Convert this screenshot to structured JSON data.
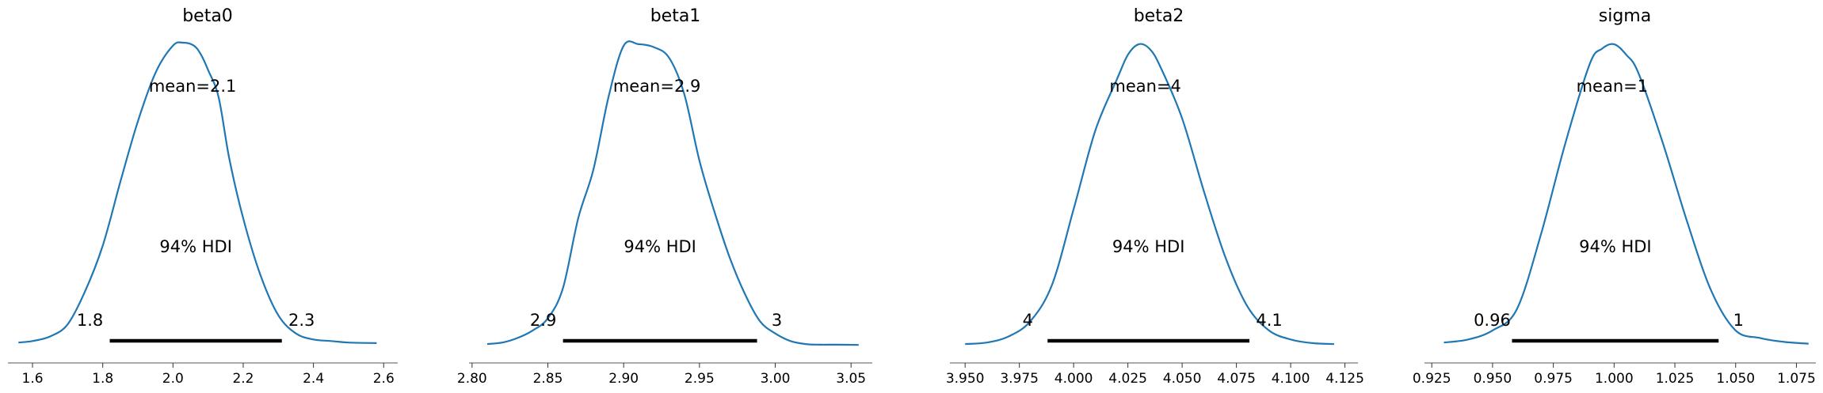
{
  "chart_data": [
    {
      "type": "line",
      "title": "beta0",
      "mean_label": "mean=2.1",
      "hdi_label": "94% HDI",
      "hdi": [
        1.82,
        2.31
      ],
      "hdi_low_label": "1.8",
      "hdi_high_label": "2.3",
      "xlim": [
        1.53,
        2.64
      ],
      "xticks": [
        1.6,
        1.8,
        2.0,
        2.2,
        2.4,
        2.6
      ],
      "xtick_labels": [
        "1.6",
        "1.8",
        "2.0",
        "2.2",
        "2.4",
        "2.6"
      ],
      "x": [
        1.56,
        1.6,
        1.65,
        1.7,
        1.75,
        1.8,
        1.85,
        1.9,
        1.95,
        2.0,
        2.03,
        2.06,
        2.08,
        2.1,
        2.13,
        2.16,
        2.2,
        2.25,
        2.3,
        2.35,
        2.4,
        2.45,
        2.5,
        2.58
      ],
      "y": [
        0.01,
        0.015,
        0.03,
        0.07,
        0.18,
        0.33,
        0.54,
        0.74,
        0.9,
        0.99,
        1.0,
        0.99,
        0.96,
        0.91,
        0.82,
        0.62,
        0.42,
        0.23,
        0.1,
        0.04,
        0.02,
        0.015,
        0.01,
        0.008
      ]
    },
    {
      "type": "line",
      "title": "beta1",
      "mean_label": "mean=2.9",
      "hdi_label": "94% HDI",
      "hdi": [
        2.86,
        2.988
      ],
      "hdi_low_label": "2.9",
      "hdi_high_label": "3",
      "xlim": [
        2.798,
        3.064
      ],
      "xticks": [
        2.8,
        2.85,
        2.9,
        2.95,
        3.0,
        3.05
      ],
      "xtick_labels": [
        "2.80",
        "2.85",
        "2.90",
        "2.95",
        "3.00",
        "3.05"
      ],
      "x": [
        2.81,
        2.82,
        2.83,
        2.84,
        2.85,
        2.86,
        2.87,
        2.88,
        2.89,
        2.9,
        2.91,
        2.92,
        2.93,
        2.94,
        2.95,
        2.96,
        2.97,
        2.98,
        2.99,
        3.0,
        3.01,
        3.02,
        3.03,
        3.04,
        3.055
      ],
      "y": [
        0.005,
        0.01,
        0.025,
        0.05,
        0.09,
        0.19,
        0.42,
        0.58,
        0.82,
        0.99,
        0.995,
        0.985,
        0.95,
        0.83,
        0.61,
        0.44,
        0.29,
        0.17,
        0.08,
        0.04,
        0.015,
        0.005,
        0.003,
        0.003,
        0.002
      ]
    },
    {
      "type": "line",
      "title": "beta2",
      "mean_label": "mean=4",
      "hdi_label": "94% HDI",
      "hdi": [
        3.988,
        4.081
      ],
      "hdi_low_label": "4",
      "hdi_high_label": "4.1",
      "xlim": [
        3.943,
        4.131
      ],
      "xticks": [
        3.95,
        3.975,
        4.0,
        4.025,
        4.05,
        4.075,
        4.1,
        4.125
      ],
      "xtick_labels": [
        "3.950",
        "3.975",
        "4.000",
        "4.025",
        "4.050",
        "4.075",
        "4.100",
        "4.125"
      ],
      "x": [
        3.95,
        3.96,
        3.97,
        3.98,
        3.99,
        4.0,
        4.01,
        4.02,
        4.025,
        4.03,
        4.035,
        4.04,
        4.05,
        4.06,
        4.07,
        4.08,
        4.09,
        4.1,
        4.11,
        4.12
      ],
      "y": [
        0.005,
        0.01,
        0.03,
        0.08,
        0.2,
        0.45,
        0.71,
        0.88,
        0.96,
        0.995,
        0.98,
        0.92,
        0.75,
        0.51,
        0.29,
        0.13,
        0.05,
        0.02,
        0.008,
        0.005
      ]
    },
    {
      "type": "line",
      "title": "sigma",
      "mean_label": "mean=1",
      "hdi_label": "94% HDI",
      "hdi": [
        0.958,
        1.043
      ],
      "hdi_low_label": "0.96",
      "hdi_high_label": "1",
      "xlim": [
        0.922,
        1.083
      ],
      "xticks": [
        0.925,
        0.95,
        0.975,
        1.0,
        1.025,
        1.05,
        1.075
      ],
      "xtick_labels": [
        "0.925",
        "0.950",
        "0.975",
        "1.000",
        "1.025",
        "1.050",
        "1.075"
      ],
      "x": [
        0.93,
        0.94,
        0.95,
        0.96,
        0.97,
        0.98,
        0.99,
        0.995,
        1.0,
        1.005,
        1.01,
        1.02,
        1.03,
        1.04,
        1.05,
        1.06,
        1.07,
        1.08
      ],
      "y": [
        0.01,
        0.02,
        0.05,
        0.12,
        0.37,
        0.67,
        0.93,
        0.98,
        0.995,
        0.96,
        0.9,
        0.67,
        0.41,
        0.18,
        0.05,
        0.025,
        0.012,
        0.006
      ]
    }
  ]
}
